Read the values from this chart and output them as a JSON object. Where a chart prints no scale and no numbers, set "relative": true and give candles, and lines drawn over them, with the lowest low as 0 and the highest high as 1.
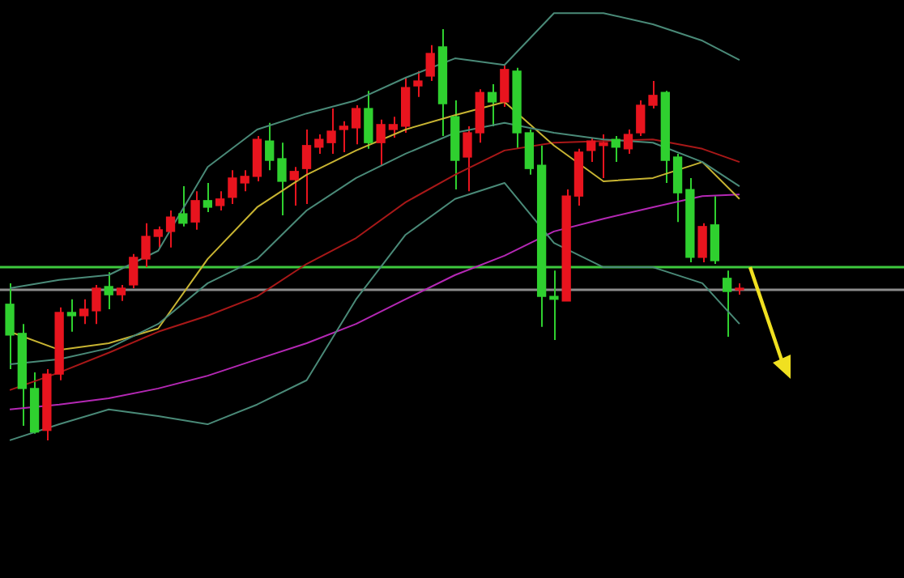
{
  "chart_data": {
    "type": "candlestick",
    "relative": true,
    "legend": false,
    "categories": [
      null,
      null,
      null,
      null,
      null,
      null,
      null,
      null,
      null,
      null,
      null,
      null,
      null,
      null,
      null,
      null,
      null,
      null,
      null,
      null,
      null,
      null,
      null,
      null,
      null,
      null,
      null,
      null,
      null,
      null,
      null,
      null,
      null,
      null,
      null,
      null,
      null,
      null,
      null,
      null,
      null,
      null,
      null,
      null,
      null,
      null,
      null,
      null,
      null,
      null,
      null,
      null,
      null,
      null,
      null,
      null,
      null,
      null,
      null,
      null
    ],
    "ohlc": [
      [
        0.331,
        0.382,
        0.173,
        0.256
      ],
      [
        0.26,
        0.283,
        0.035,
        0.126
      ],
      [
        0.126,
        0.165,
        0.016,
        0.02
      ],
      [
        0.024,
        0.173,
        0,
        0.161
      ],
      [
        0.161,
        0.323,
        0.146,
        0.311
      ],
      [
        0.311,
        0.343,
        0.264,
        0.303
      ],
      [
        0.303,
        0.343,
        0.283,
        0.319
      ],
      [
        0.315,
        0.378,
        0.283,
        0.37
      ],
      [
        0.374,
        0.409,
        0.319,
        0.354
      ],
      [
        0.354,
        0.378,
        0.339,
        0.37
      ],
      [
        0.378,
        0.453,
        0.37,
        0.445
      ],
      [
        0.441,
        0.528,
        0.421,
        0.496
      ],
      [
        0.496,
        0.52,
        0.469,
        0.512
      ],
      [
        0.508,
        0.559,
        0.469,
        0.543
      ],
      [
        0.551,
        0.618,
        0.52,
        0.528
      ],
      [
        0.531,
        0.606,
        0.512,
        0.583
      ],
      [
        0.583,
        0.626,
        0.555,
        0.567
      ],
      [
        0.571,
        0.606,
        0.559,
        0.587
      ],
      [
        0.591,
        0.657,
        0.575,
        0.638
      ],
      [
        0.626,
        0.657,
        0.606,
        0.642
      ],
      [
        0.642,
        0.74,
        0.63,
        0.732
      ],
      [
        0.728,
        0.772,
        0.657,
        0.681
      ],
      [
        0.685,
        0.724,
        0.547,
        0.63
      ],
      [
        0.634,
        0.665,
        0.571,
        0.654
      ],
      [
        0.661,
        0.756,
        0.575,
        0.717
      ],
      [
        0.713,
        0.744,
        0.697,
        0.732
      ],
      [
        0.724,
        0.807,
        0.697,
        0.752
      ],
      [
        0.756,
        0.776,
        0.701,
        0.764
      ],
      [
        0.76,
        0.815,
        0.72,
        0.807
      ],
      [
        0.807,
        0.85,
        0.709,
        0.724
      ],
      [
        0.724,
        0.78,
        0.669,
        0.768
      ],
      [
        0.756,
        0.787,
        0.736,
        0.768
      ],
      [
        0.764,
        0.882,
        0.748,
        0.858
      ],
      [
        0.862,
        0.898,
        0.835,
        0.874
      ],
      [
        0.886,
        0.961,
        0.874,
        0.941
      ],
      [
        0.957,
        1,
        0.74,
        0.819
      ],
      [
        0.787,
        0.827,
        0.61,
        0.681
      ],
      [
        0.689,
        0.764,
        0.606,
        0.748
      ],
      [
        0.748,
        0.854,
        0.724,
        0.846
      ],
      [
        0.846,
        0.866,
        0.764,
        0.823
      ],
      [
        0.823,
        0.913,
        0.811,
        0.902
      ],
      [
        0.898,
        0.906,
        0.709,
        0.748
      ],
      [
        0.748,
        0.756,
        0.646,
        0.661
      ],
      [
        0.669,
        0.717,
        0.276,
        0.35
      ],
      [
        0.35,
        0.413,
        0.244,
        0.343
      ],
      [
        0.339,
        0.61,
        0.339,
        0.594
      ],
      [
        0.594,
        0.709,
        0.571,
        0.701
      ],
      [
        0.705,
        0.736,
        0.677,
        0.728
      ],
      [
        0.717,
        0.744,
        0.638,
        0.724
      ],
      [
        0.732,
        0.74,
        0.677,
        0.713
      ],
      [
        0.709,
        0.756,
        0.697,
        0.744
      ],
      [
        0.748,
        0.827,
        0.74,
        0.815
      ],
      [
        0.815,
        0.874,
        0.807,
        0.839
      ],
      [
        0.846,
        0.85,
        0.626,
        0.681
      ],
      [
        0.689,
        0.697,
        0.531,
        0.602
      ],
      [
        0.61,
        0.638,
        0.433,
        0.445
      ],
      [
        0.445,
        0.528,
        0.433,
        0.52
      ],
      [
        0.524,
        0.594,
        0.429,
        0.437
      ],
      [
        0.394,
        0.413,
        0.252,
        0.362
      ],
      [
        0.366,
        0.382,
        0.354,
        0.37
      ]
    ],
    "colors": [
      "#2fd02f",
      "#2fd02f",
      "#2fd02f",
      "#e8141e",
      "#e8141e",
      "#2fd02f",
      "#e8141e",
      "#e8141e",
      "#2fd02f",
      "#e8141e",
      "#e8141e",
      "#e8141e",
      "#e8141e",
      "#e8141e",
      "#2fd02f",
      "#e8141e",
      "#2fd02f",
      "#e8141e",
      "#e8141e",
      "#e8141e",
      "#e8141e",
      "#2fd02f",
      "#2fd02f",
      "#e8141e",
      "#e8141e",
      "#e8141e",
      "#e8141e",
      "#e8141e",
      "#e8141e",
      "#2fd02f",
      "#e8141e",
      "#e8141e",
      "#e8141e",
      "#e8141e",
      "#e8141e",
      "#2fd02f",
      "#2fd02f",
      "#e8141e",
      "#e8141e",
      "#2fd02f",
      "#e8141e",
      "#2fd02f",
      "#2fd02f",
      "#2fd02f",
      "#2fd02f",
      "#e8141e",
      "#e8141e",
      "#e8141e",
      "#e8141e",
      "#2fd02f",
      "#e8141e",
      "#e8141e",
      "#e8141e",
      "#2fd02f",
      "#2fd02f",
      "#2fd02f",
      "#e8141e",
      "#2fd02f",
      "#2fd02f",
      "#e8141e"
    ],
    "series": [
      {
        "type": "line",
        "color": "#4a8a78",
        "values": [
          0.37,
          null,
          null,
          null,
          0.39,
          null,
          null,
          null,
          0.402,
          null,
          null,
          null,
          0.461,
          null,
          null,
          null,
          0.665,
          null,
          null,
          null,
          0.756,
          null,
          null,
          null,
          0.795,
          null,
          null,
          null,
          0.827,
          null,
          null,
          null,
          0.882,
          null,
          null,
          null,
          0.929,
          null,
          null,
          null,
          0.913,
          null,
          null,
          null,
          1.039,
          null,
          null,
          null,
          1.039,
          null,
          null,
          null,
          1.012,
          null,
          null,
          null,
          0.972,
          null,
          null,
          0.925
        ]
      },
      {
        "type": "line",
        "color": "#4a8a78",
        "values": [
          0.185,
          null,
          null,
          null,
          0.197,
          null,
          null,
          null,
          0.224,
          null,
          null,
          null,
          0.283,
          null,
          null,
          null,
          0.382,
          null,
          null,
          null,
          0.441,
          null,
          null,
          null,
          0.559,
          null,
          null,
          null,
          0.638,
          null,
          null,
          null,
          0.697,
          null,
          null,
          null,
          0.748,
          null,
          null,
          null,
          0.772,
          null,
          null,
          null,
          0.748,
          null,
          null,
          null,
          0.732,
          null,
          null,
          null,
          0.724,
          null,
          null,
          null,
          0.677,
          null,
          null,
          0.618
        ]
      },
      {
        "type": "line",
        "color": "#4a8a78",
        "values": [
          0,
          null,
          null,
          null,
          0.039,
          null,
          null,
          null,
          0.075,
          null,
          null,
          null,
          0.059,
          null,
          null,
          null,
          0.039,
          null,
          null,
          null,
          0.087,
          null,
          null,
          null,
          0.146,
          null,
          null,
          null,
          0.343,
          null,
          null,
          null,
          0.5,
          null,
          null,
          null,
          0.587,
          null,
          null,
          null,
          0.626,
          null,
          null,
          null,
          0.48,
          null,
          null,
          null,
          0.421,
          null,
          null,
          null,
          0.421,
          null,
          null,
          null,
          0.382,
          null,
          null,
          0.283
        ]
      },
      {
        "type": "line",
        "color": "#c8b432",
        "values": [
          0.264,
          null,
          null,
          null,
          0.22,
          null,
          null,
          null,
          0.236,
          null,
          null,
          null,
          0.272,
          null,
          null,
          null,
          0.441,
          null,
          null,
          null,
          0.567,
          null,
          null,
          null,
          0.646,
          null,
          null,
          null,
          0.705,
          null,
          null,
          null,
          0.756,
          null,
          null,
          null,
          0.791,
          null,
          null,
          null,
          0.823,
          null,
          null,
          null,
          0.717,
          null,
          null,
          null,
          0.63,
          null,
          null,
          null,
          0.638,
          null,
          null,
          null,
          0.677,
          null,
          null,
          0.587
        ]
      },
      {
        "type": "line",
        "color": "#a81818",
        "values": [
          0.122,
          null,
          null,
          null,
          0.165,
          null,
          null,
          null,
          0.213,
          null,
          null,
          null,
          0.264,
          null,
          null,
          null,
          0.303,
          null,
          null,
          null,
          0.35,
          null,
          null,
          null,
          0.429,
          null,
          null,
          null,
          0.492,
          null,
          null,
          null,
          0.579,
          null,
          null,
          null,
          0.646,
          null,
          null,
          null,
          0.705,
          null,
          null,
          null,
          0.724,
          null,
          null,
          null,
          0.728,
          null,
          null,
          null,
          0.732,
          null,
          null,
          null,
          0.709,
          null,
          null,
          0.677
        ]
      },
      {
        "type": "line",
        "color": "#b428b4",
        "values": [
          0.075,
          null,
          null,
          null,
          0.087,
          null,
          null,
          null,
          0.102,
          null,
          null,
          null,
          0.126,
          null,
          null,
          null,
          0.157,
          null,
          null,
          null,
          0.197,
          null,
          null,
          null,
          0.236,
          null,
          null,
          null,
          0.283,
          null,
          null,
          null,
          0.343,
          null,
          null,
          null,
          0.402,
          null,
          null,
          null,
          0.449,
          null,
          null,
          null,
          0.508,
          null,
          null,
          null,
          0.539,
          null,
          null,
          null,
          0.567,
          null,
          null,
          null,
          0.594,
          null,
          null,
          0.598
        ]
      }
    ],
    "ref_lines": [
      {
        "axis": "y",
        "value": 0.421,
        "color": "#3ec83e"
      },
      {
        "axis": "y",
        "value": 0.366,
        "color": "#8c8c8c"
      }
    ]
  }
}
